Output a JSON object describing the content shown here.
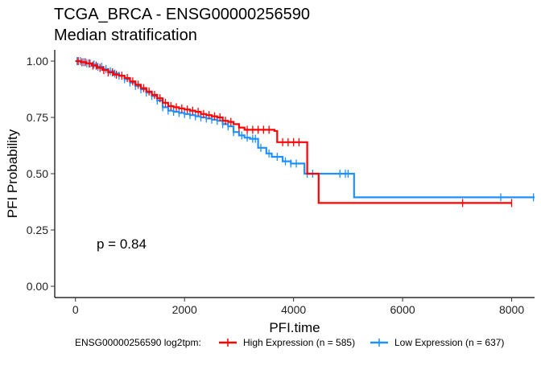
{
  "chart_data": {
    "type": "line",
    "title": "TCGA_BRCA - ENSG00000256590",
    "subtitle": "Median stratification",
    "xlabel": "PFI.time",
    "ylabel": "PFI Probability",
    "xlim": [
      -380,
      8420
    ],
    "ylim": [
      -0.05,
      1.05
    ],
    "x_ticks": [
      0,
      2000,
      4000,
      6000,
      8000
    ],
    "x_tick_labels": [
      "0",
      "2000",
      "4000",
      "6000",
      "8000"
    ],
    "y_ticks": [
      0,
      0.25,
      0.5,
      0.75,
      1.0
    ],
    "y_tick_labels": [
      "0.00",
      "0.25",
      "0.50",
      "0.75",
      "1.00"
    ],
    "grid": false,
    "legend_position": "bottom",
    "legend_title": "ENSG00000256590 log2tpm:",
    "annotation": "p = 0.84",
    "series": [
      {
        "name": "High Expression (n = 585)",
        "color": "#FF0000",
        "steps": [
          [
            0,
            1.0
          ],
          [
            100,
            0.995
          ],
          [
            200,
            0.99
          ],
          [
            300,
            0.98
          ],
          [
            400,
            0.97
          ],
          [
            500,
            0.96
          ],
          [
            600,
            0.95
          ],
          [
            700,
            0.94
          ],
          [
            800,
            0.935
          ],
          [
            900,
            0.925
          ],
          [
            1000,
            0.91
          ],
          [
            1100,
            0.895
          ],
          [
            1200,
            0.88
          ],
          [
            1300,
            0.865
          ],
          [
            1400,
            0.85
          ],
          [
            1500,
            0.835
          ],
          [
            1600,
            0.815
          ],
          [
            1700,
            0.8
          ],
          [
            1800,
            0.795
          ],
          [
            1900,
            0.79
          ],
          [
            2000,
            0.785
          ],
          [
            2100,
            0.78
          ],
          [
            2200,
            0.775
          ],
          [
            2300,
            0.765
          ],
          [
            2400,
            0.76
          ],
          [
            2500,
            0.755
          ],
          [
            2600,
            0.75
          ],
          [
            2700,
            0.735
          ],
          [
            2800,
            0.73
          ],
          [
            2900,
            0.72
          ],
          [
            3000,
            0.705
          ],
          [
            3100,
            0.695
          ],
          [
            3650,
            0.69
          ],
          [
            3700,
            0.64
          ],
          [
            4200,
            0.64
          ],
          [
            4250,
            0.5
          ],
          [
            4450,
            0.5
          ],
          [
            4460,
            0.37
          ],
          [
            8000,
            0.37
          ]
        ],
        "censor_x": [
          50,
          120,
          180,
          250,
          320,
          380,
          450,
          520,
          600,
          680,
          750,
          850,
          950,
          1050,
          1150,
          1250,
          1350,
          1450,
          1550,
          1650,
          1750,
          1850,
          1950,
          2050,
          2150,
          2250,
          2350,
          2450,
          2550,
          2650,
          2750,
          2850,
          3000,
          3150,
          3250,
          3350,
          3450,
          3550,
          3800,
          3900,
          4000,
          4100,
          7100,
          8000
        ]
      },
      {
        "name": "Low Expression (n = 637)",
        "color": "#1E90FF",
        "steps": [
          [
            0,
            1.0
          ],
          [
            100,
            0.995
          ],
          [
            200,
            0.99
          ],
          [
            300,
            0.985
          ],
          [
            400,
            0.975
          ],
          [
            500,
            0.965
          ],
          [
            600,
            0.955
          ],
          [
            700,
            0.945
          ],
          [
            800,
            0.935
          ],
          [
            900,
            0.92
          ],
          [
            1000,
            0.905
          ],
          [
            1100,
            0.89
          ],
          [
            1200,
            0.875
          ],
          [
            1300,
            0.86
          ],
          [
            1400,
            0.845
          ],
          [
            1500,
            0.825
          ],
          [
            1600,
            0.795
          ],
          [
            1700,
            0.78
          ],
          [
            1800,
            0.775
          ],
          [
            1900,
            0.77
          ],
          [
            2000,
            0.765
          ],
          [
            2100,
            0.76
          ],
          [
            2200,
            0.755
          ],
          [
            2300,
            0.75
          ],
          [
            2400,
            0.745
          ],
          [
            2500,
            0.74
          ],
          [
            2600,
            0.735
          ],
          [
            2700,
            0.72
          ],
          [
            2800,
            0.71
          ],
          [
            2900,
            0.685
          ],
          [
            3000,
            0.67
          ],
          [
            3100,
            0.66
          ],
          [
            3200,
            0.655
          ],
          [
            3350,
            0.615
          ],
          [
            3500,
            0.59
          ],
          [
            3600,
            0.575
          ],
          [
            3800,
            0.555
          ],
          [
            3950,
            0.545
          ],
          [
            4150,
            0.545
          ],
          [
            4200,
            0.5
          ],
          [
            4900,
            0.5
          ],
          [
            5100,
            0.5
          ],
          [
            5110,
            0.395
          ],
          [
            8420,
            0.395
          ]
        ],
        "censor_x": [
          30,
          90,
          150,
          210,
          270,
          340,
          410,
          480,
          560,
          640,
          720,
          800,
          900,
          1000,
          1100,
          1200,
          1300,
          1400,
          1500,
          1600,
          1700,
          1800,
          1900,
          2000,
          2100,
          2200,
          2300,
          2400,
          2500,
          2600,
          2700,
          2800,
          2900,
          3050,
          3150,
          3250,
          3300,
          3400,
          3550,
          3700,
          3850,
          3950,
          4050,
          4250,
          4350,
          4850,
          4950,
          5000,
          7800,
          8400
        ]
      }
    ]
  }
}
